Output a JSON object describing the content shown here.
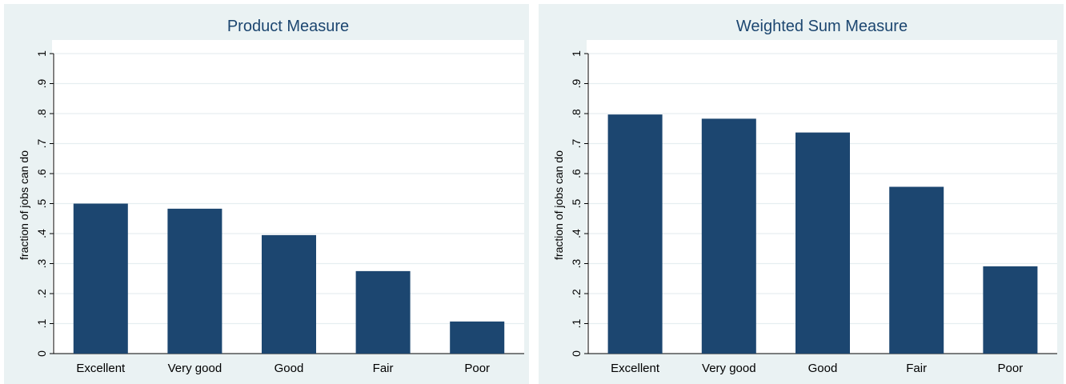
{
  "chart_data": [
    {
      "type": "bar",
      "title": "Product Measure",
      "ylabel": "fraction of jobs can do",
      "xlabel": "",
      "categories": [
        "Excellent",
        "Very good",
        "Good",
        "Fair",
        "Poor"
      ],
      "values": [
        0.5,
        0.483,
        0.395,
        0.275,
        0.107
      ],
      "ylim": [
        0,
        1
      ],
      "yticks": [
        "0",
        ".1",
        ".2",
        ".3",
        ".4",
        ".5",
        ".6",
        ".7",
        ".8",
        ".9",
        "1"
      ],
      "grid": true,
      "colors": {
        "bar": "#1c4670",
        "panel_bg": "#eaf2f3",
        "plot_bg": "#ffffff",
        "grid": "#e6eef0",
        "title": "#1c4670"
      }
    },
    {
      "type": "bar",
      "title": "Weighted Sum Measure",
      "ylabel": "fraction of jobs can do",
      "xlabel": "",
      "categories": [
        "Excellent",
        "Very good",
        "Good",
        "Fair",
        "Poor"
      ],
      "values": [
        0.797,
        0.783,
        0.737,
        0.556,
        0.291
      ],
      "ylim": [
        0,
        1
      ],
      "yticks": [
        "0",
        ".1",
        ".2",
        ".3",
        ".4",
        ".5",
        ".6",
        ".7",
        ".8",
        ".9",
        "1"
      ],
      "grid": true,
      "colors": {
        "bar": "#1c4670",
        "panel_bg": "#eaf2f3",
        "plot_bg": "#ffffff",
        "grid": "#e6eef0",
        "title": "#1c4670"
      }
    }
  ]
}
